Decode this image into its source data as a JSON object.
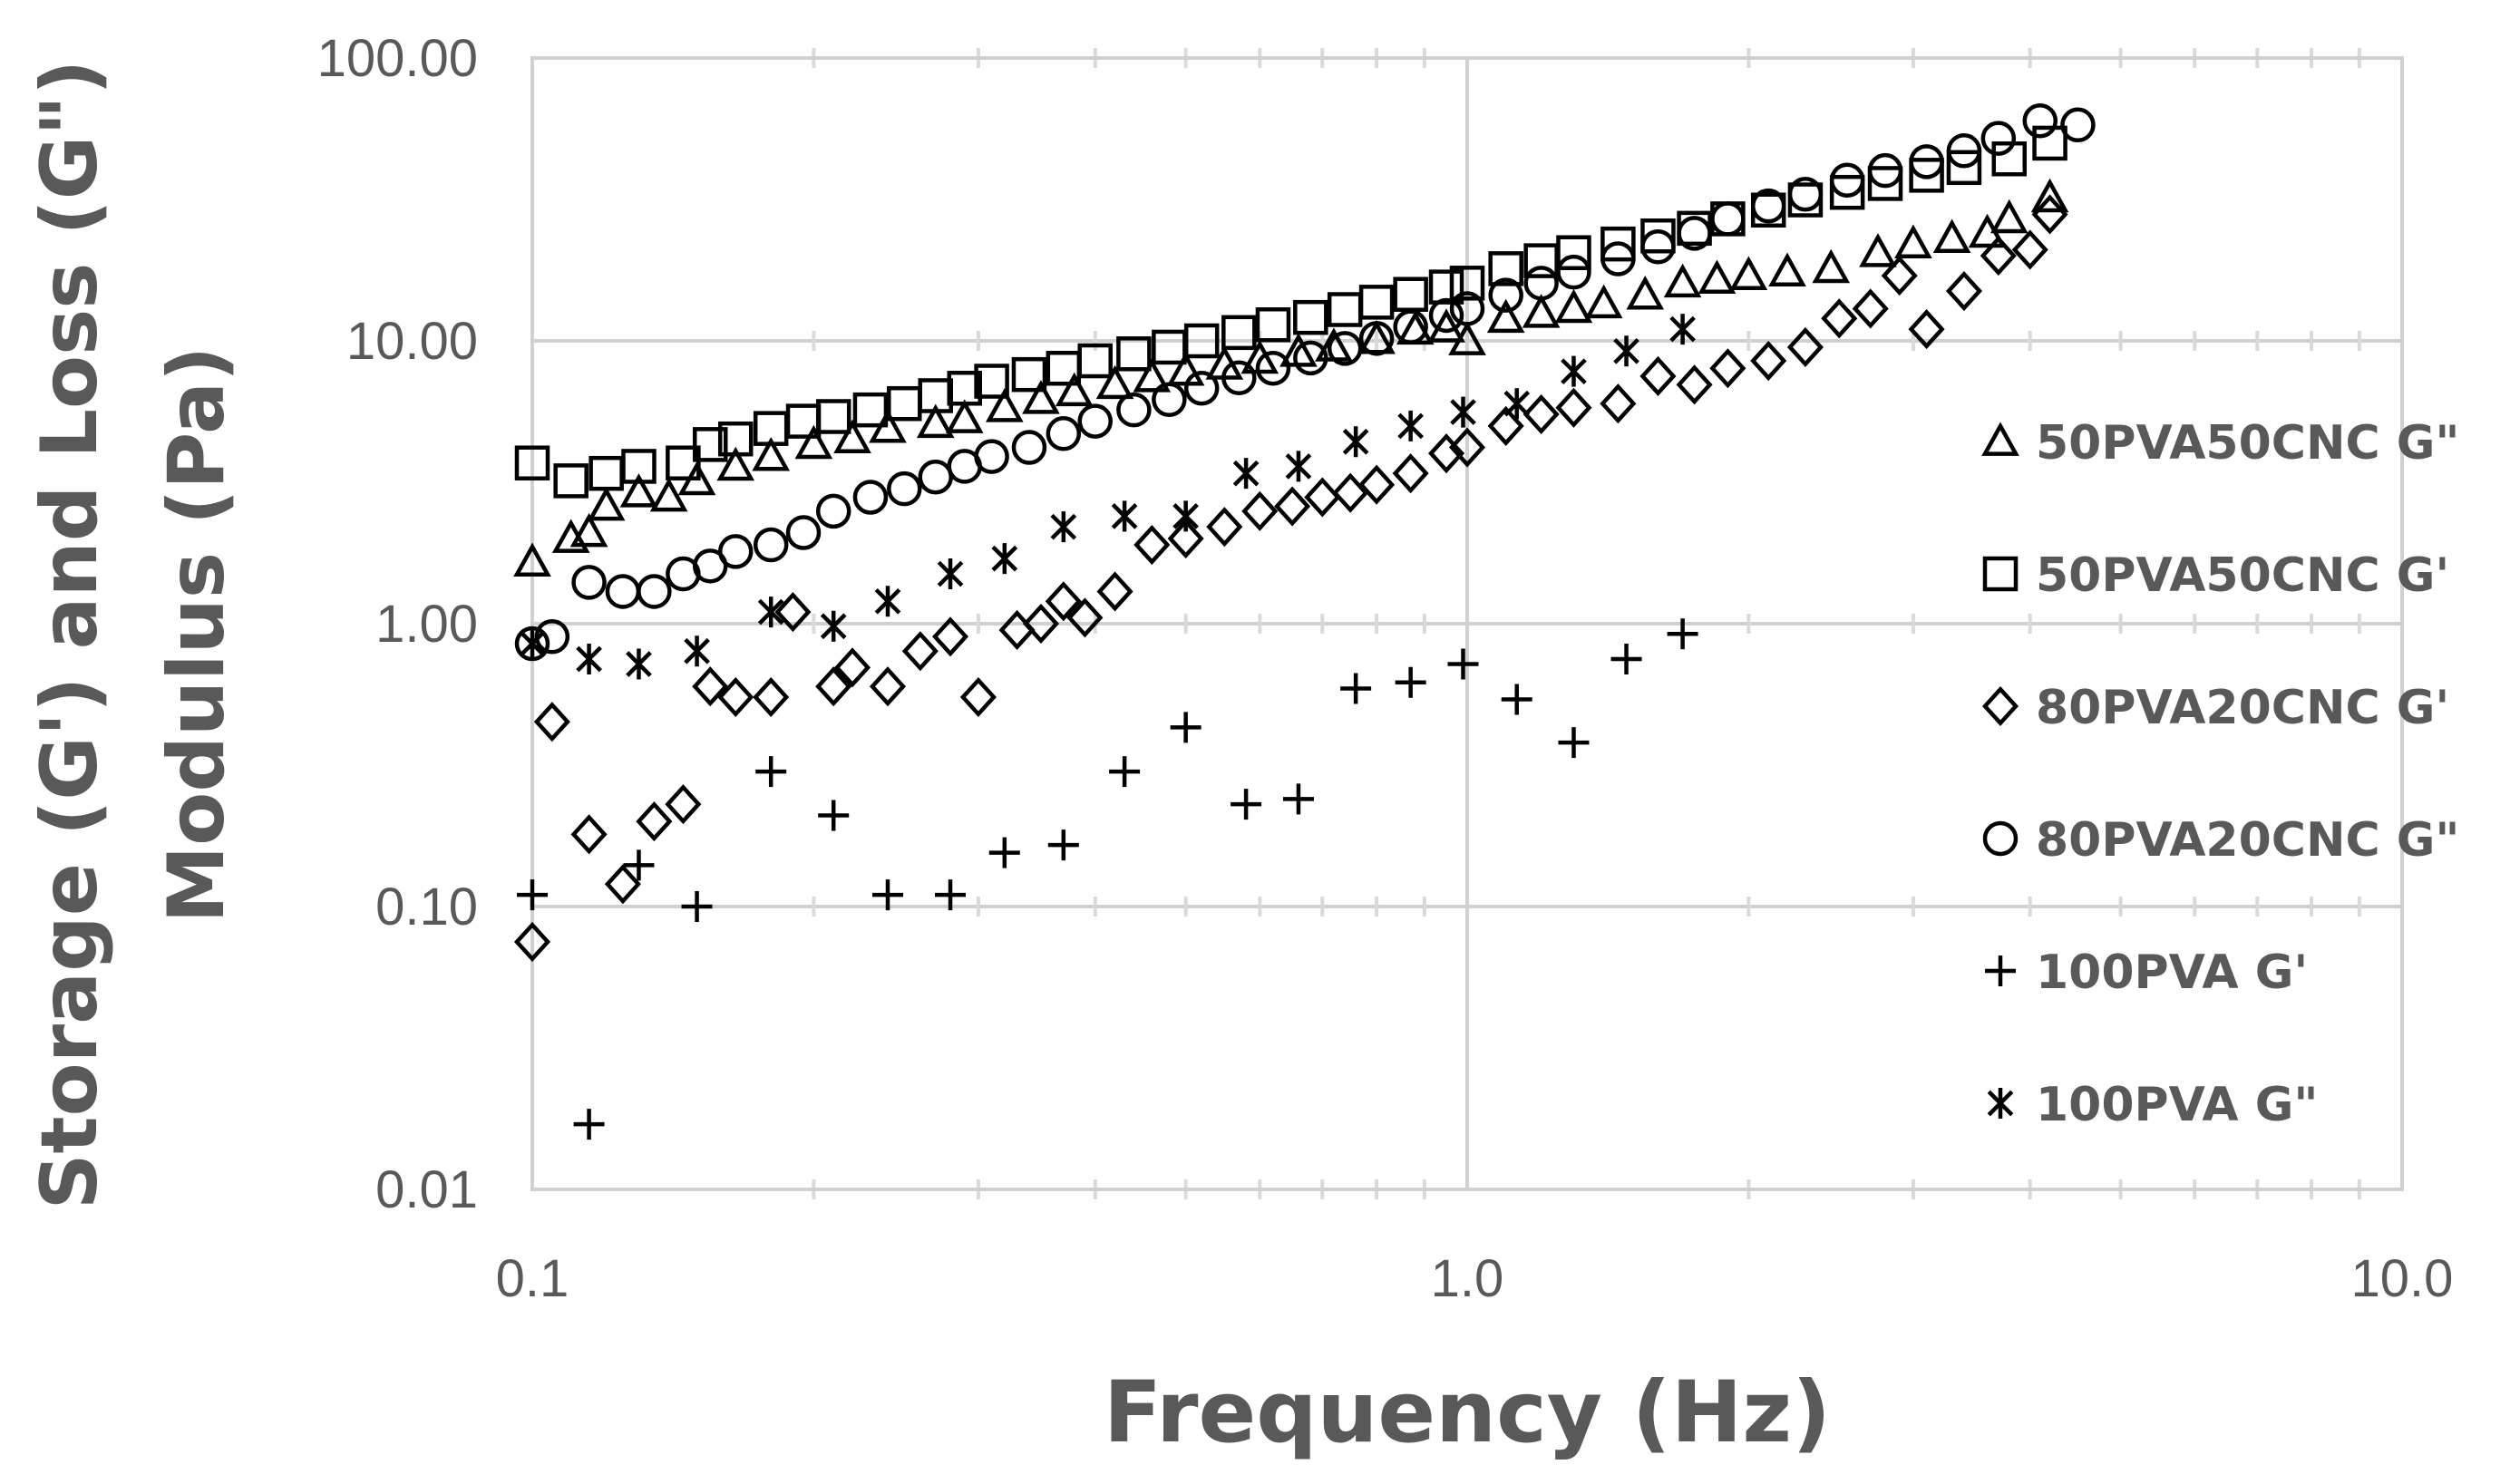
{
  "chart_data": {
    "type": "scatter",
    "xlabel": "Frequency (Hz)",
    "ylabel_lines": [
      "Storage (G') and Loss  (G\")",
      "Modulus (Pa)"
    ],
    "x_scale": "log",
    "y_scale": "log",
    "xlim": [
      0.1,
      10
    ],
    "ylim": [
      0.01,
      100
    ],
    "x_ticks": [
      "0.1",
      "1.0",
      "10.0"
    ],
    "y_ticks": [
      "100.00",
      "10.00",
      "1.00",
      "0.10",
      "0.01"
    ],
    "grid": true,
    "legend_position": "right",
    "series": [
      {
        "name": "50PVA50CNC G\"",
        "marker": "triangle",
        "points": [
          [
            0.1,
            1.65
          ],
          [
            0.11,
            2.0
          ],
          [
            0.115,
            2.1
          ],
          [
            0.12,
            2.6
          ],
          [
            0.13,
            2.9
          ],
          [
            0.14,
            2.8
          ],
          [
            0.15,
            3.2
          ],
          [
            0.165,
            3.6
          ],
          [
            0.18,
            3.9
          ],
          [
            0.2,
            4.3
          ],
          [
            0.22,
            4.5
          ],
          [
            0.24,
            4.9
          ],
          [
            0.27,
            5.1
          ],
          [
            0.29,
            5.3
          ],
          [
            0.32,
            5.8
          ],
          [
            0.35,
            6.2
          ],
          [
            0.38,
            6.6
          ],
          [
            0.42,
            7.0
          ],
          [
            0.46,
            7.4
          ],
          [
            0.5,
            7.8
          ],
          [
            0.55,
            8.2
          ],
          [
            0.6,
            8.6
          ],
          [
            0.66,
            9.1
          ],
          [
            0.72,
            9.5
          ],
          [
            0.8,
            10.1
          ],
          [
            0.88,
            10.9
          ],
          [
            0.95,
            11.1
          ],
          [
            1.0,
            10.0
          ],
          [
            1.1,
            12.0
          ],
          [
            1.2,
            12.5
          ],
          [
            1.3,
            13.0
          ],
          [
            1.4,
            13.5
          ],
          [
            1.55,
            14.5
          ],
          [
            1.7,
            16.0
          ],
          [
            1.85,
            16.5
          ],
          [
            2.0,
            17.0
          ],
          [
            2.2,
            17.5
          ],
          [
            2.45,
            18.0
          ],
          [
            2.75,
            20.5
          ],
          [
            3.0,
            22.0
          ],
          [
            3.3,
            23.0
          ],
          [
            3.6,
            24.0
          ],
          [
            3.8,
            27.0
          ],
          [
            4.2,
            32.0
          ]
        ]
      },
      {
        "name": "50PVA50CNC G'",
        "marker": "square",
        "points": [
          [
            0.1,
            3.7
          ],
          [
            0.11,
            3.2
          ],
          [
            0.12,
            3.4
          ],
          [
            0.13,
            3.6
          ],
          [
            0.145,
            3.7
          ],
          [
            0.155,
            4.3
          ],
          [
            0.165,
            4.5
          ],
          [
            0.18,
            4.9
          ],
          [
            0.195,
            5.2
          ],
          [
            0.21,
            5.4
          ],
          [
            0.23,
            5.7
          ],
          [
            0.25,
            6.0
          ],
          [
            0.27,
            6.4
          ],
          [
            0.29,
            6.8
          ],
          [
            0.31,
            7.2
          ],
          [
            0.34,
            7.6
          ],
          [
            0.37,
            8.0
          ],
          [
            0.4,
            8.5
          ],
          [
            0.44,
            9.0
          ],
          [
            0.48,
            9.5
          ],
          [
            0.52,
            10.0
          ],
          [
            0.57,
            10.7
          ],
          [
            0.62,
            11.4
          ],
          [
            0.68,
            12.1
          ],
          [
            0.74,
            12.9
          ],
          [
            0.8,
            13.7
          ],
          [
            0.87,
            14.6
          ],
          [
            0.95,
            15.5
          ],
          [
            1.0,
            16.0
          ],
          [
            1.1,
            18.0
          ],
          [
            1.2,
            19.2
          ],
          [
            1.3,
            20.5
          ],
          [
            1.45,
            22.0
          ],
          [
            1.6,
            23.5
          ],
          [
            1.75,
            25.0
          ],
          [
            1.9,
            27.0
          ],
          [
            2.1,
            29.0
          ],
          [
            2.3,
            31.5
          ],
          [
            2.55,
            33.5
          ],
          [
            2.8,
            36.0
          ],
          [
            3.1,
            38.5
          ],
          [
            3.4,
            41.0
          ],
          [
            3.8,
            44.0
          ],
          [
            4.2,
            50.0
          ]
        ]
      },
      {
        "name": "80PVA20CNC G'",
        "marker": "diamond",
        "points": [
          [
            0.1,
            0.075
          ],
          [
            0.105,
            0.45
          ],
          [
            0.115,
            0.18
          ],
          [
            0.125,
            0.12
          ],
          [
            0.135,
            0.2
          ],
          [
            0.145,
            0.23
          ],
          [
            0.155,
            0.6
          ],
          [
            0.165,
            0.55
          ],
          [
            0.18,
            0.55
          ],
          [
            0.19,
            1.1
          ],
          [
            0.21,
            0.6
          ],
          [
            0.22,
            0.7
          ],
          [
            0.24,
            0.6
          ],
          [
            0.26,
            0.8
          ],
          [
            0.28,
            0.9
          ],
          [
            0.3,
            0.55
          ],
          [
            0.33,
            0.95
          ],
          [
            0.35,
            1.0
          ],
          [
            0.37,
            1.2
          ],
          [
            0.39,
            1.05
          ],
          [
            0.42,
            1.3
          ],
          [
            0.46,
            1.9
          ],
          [
            0.5,
            2.0
          ],
          [
            0.55,
            2.2
          ],
          [
            0.6,
            2.5
          ],
          [
            0.65,
            2.6
          ],
          [
            0.7,
            2.8
          ],
          [
            0.75,
            2.9
          ],
          [
            0.8,
            3.1
          ],
          [
            0.87,
            3.4
          ],
          [
            0.95,
            4.0
          ],
          [
            1.0,
            4.2
          ],
          [
            1.1,
            5.0
          ],
          [
            1.2,
            5.5
          ],
          [
            1.3,
            5.8
          ],
          [
            1.45,
            6.0
          ],
          [
            1.6,
            7.5
          ],
          [
            1.75,
            7.0
          ],
          [
            1.9,
            8.0
          ],
          [
            2.1,
            8.5
          ],
          [
            2.3,
            9.5
          ],
          [
            2.5,
            12.0
          ],
          [
            2.7,
            13.0
          ],
          [
            2.9,
            17.0
          ],
          [
            3.1,
            11.0
          ],
          [
            3.4,
            15.0
          ],
          [
            3.7,
            20.0
          ],
          [
            4.0,
            21.0
          ],
          [
            4.2,
            28.0
          ]
        ]
      },
      {
        "name": "80PVA20CNC G\"",
        "marker": "circle",
        "points": [
          [
            0.1,
            0.85
          ],
          [
            0.105,
            0.9
          ],
          [
            0.115,
            1.4
          ],
          [
            0.125,
            1.3
          ],
          [
            0.135,
            1.3
          ],
          [
            0.145,
            1.5
          ],
          [
            0.155,
            1.6
          ],
          [
            0.165,
            1.8
          ],
          [
            0.18,
            1.9
          ],
          [
            0.195,
            2.1
          ],
          [
            0.21,
            2.5
          ],
          [
            0.23,
            2.8
          ],
          [
            0.25,
            3.0
          ],
          [
            0.27,
            3.3
          ],
          [
            0.29,
            3.6
          ],
          [
            0.31,
            3.9
          ],
          [
            0.34,
            4.2
          ],
          [
            0.37,
            4.7
          ],
          [
            0.4,
            5.2
          ],
          [
            0.44,
            5.7
          ],
          [
            0.48,
            6.2
          ],
          [
            0.52,
            6.8
          ],
          [
            0.57,
            7.4
          ],
          [
            0.62,
            8.0
          ],
          [
            0.68,
            8.7
          ],
          [
            0.74,
            9.4
          ],
          [
            0.8,
            10.2
          ],
          [
            0.87,
            11.2
          ],
          [
            0.95,
            12.3
          ],
          [
            1.0,
            13.0
          ],
          [
            1.1,
            14.5
          ],
          [
            1.2,
            16.0
          ],
          [
            1.3,
            17.5
          ],
          [
            1.45,
            19.5
          ],
          [
            1.6,
            21.5
          ],
          [
            1.75,
            24.0
          ],
          [
            1.9,
            27.0
          ],
          [
            2.1,
            30.0
          ],
          [
            2.3,
            33.0
          ],
          [
            2.55,
            37.0
          ],
          [
            2.8,
            40.0
          ],
          [
            3.1,
            43.0
          ],
          [
            3.4,
            47.0
          ],
          [
            3.7,
            52.0
          ],
          [
            4.1,
            60.0
          ],
          [
            4.5,
            58.0
          ]
        ]
      },
      {
        "name": "100PVA G'",
        "marker": "plus",
        "points": [
          [
            0.1,
            0.11
          ],
          [
            0.115,
            0.017
          ],
          [
            0.13,
            0.14
          ],
          [
            0.15,
            0.1
          ],
          [
            0.18,
            0.3
          ],
          [
            0.21,
            0.21
          ],
          [
            0.24,
            0.11
          ],
          [
            0.28,
            0.11
          ],
          [
            0.32,
            0.155
          ],
          [
            0.37,
            0.165
          ],
          [
            0.43,
            0.3
          ],
          [
            0.5,
            0.43
          ],
          [
            0.58,
            0.23
          ],
          [
            0.66,
            0.24
          ],
          [
            0.76,
            0.59
          ],
          [
            0.87,
            0.62
          ],
          [
            0.99,
            0.72
          ],
          [
            1.13,
            0.54
          ],
          [
            1.3,
            0.38
          ],
          [
            1.48,
            0.75
          ],
          [
            1.7,
            0.92
          ]
        ]
      },
      {
        "name": "100PVA G\"",
        "marker": "star",
        "points": [
          [
            0.1,
            0.85
          ],
          [
            0.115,
            0.75
          ],
          [
            0.13,
            0.72
          ],
          [
            0.15,
            0.8
          ],
          [
            0.18,
            1.1
          ],
          [
            0.21,
            0.98
          ],
          [
            0.24,
            1.2
          ],
          [
            0.28,
            1.5
          ],
          [
            0.32,
            1.7
          ],
          [
            0.37,
            2.2
          ],
          [
            0.43,
            2.4
          ],
          [
            0.5,
            2.4
          ],
          [
            0.58,
            3.4
          ],
          [
            0.66,
            3.6
          ],
          [
            0.76,
            4.4
          ],
          [
            0.87,
            5.0
          ],
          [
            0.99,
            5.6
          ],
          [
            1.13,
            6.0
          ],
          [
            1.3,
            7.8
          ],
          [
            1.48,
            9.2
          ],
          [
            1.7,
            11.0
          ]
        ]
      }
    ]
  }
}
